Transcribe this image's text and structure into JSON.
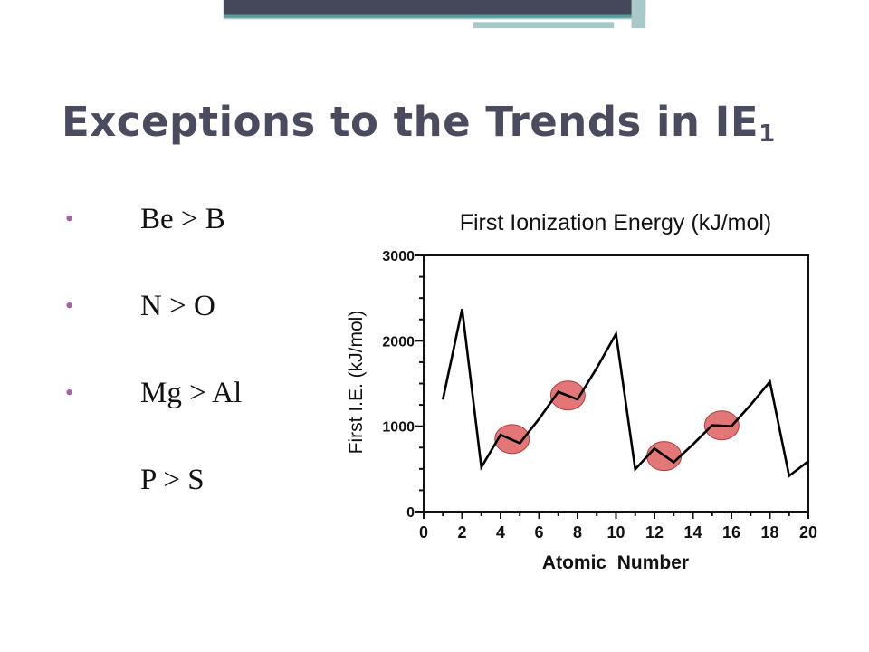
{
  "slide": {
    "title": "Exceptions to the Trends in IE",
    "title_subscript": "1",
    "bullets": [
      {
        "text": "Be > B",
        "marker": "•"
      },
      {
        "text": "N > O",
        "marker": "•"
      },
      {
        "text": "Mg  >  Al",
        "marker": "•"
      },
      {
        "text": "P  >  S",
        "marker": ""
      }
    ],
    "colors": {
      "title": "#4a4b5e",
      "bullet_marker": "#a35fa8",
      "topbar_dark": "#45475a",
      "topbar_teal": "#5a9b99",
      "topbar_light": "#a9c9c8",
      "highlight_fill": "#e06868",
      "highlight_stroke": "#b03c3c"
    }
  },
  "chart_data": {
    "type": "line",
    "title": "First Ionization Energy (kJ/mol)",
    "xlabel": "Atomic  Number",
    "ylabel": "First I.E. (kJ/mol)",
    "xlim": [
      0,
      20
    ],
    "ylim": [
      0,
      3000
    ],
    "xticks": [
      0,
      2,
      4,
      6,
      8,
      10,
      12,
      14,
      16,
      18,
      20
    ],
    "yticks": [
      0,
      1000,
      2000,
      3000
    ],
    "x": [
      1,
      2,
      3,
      4,
      5,
      6,
      7,
      8,
      9,
      10,
      11,
      12,
      13,
      14,
      15,
      16,
      17,
      18,
      19,
      20
    ],
    "y": [
      1312,
      2372,
      520,
      900,
      801,
      1086,
      1402,
      1314,
      1681,
      2081,
      496,
      738,
      578,
      787,
      1012,
      1000,
      1251,
      1521,
      419,
      590
    ],
    "highlights": [
      {
        "x": 4.6,
        "y": 850
      },
      {
        "x": 7.5,
        "y": 1360
      },
      {
        "x": 12.5,
        "y": 650
      },
      {
        "x": 15.5,
        "y": 1010
      }
    ],
    "grid": false
  }
}
